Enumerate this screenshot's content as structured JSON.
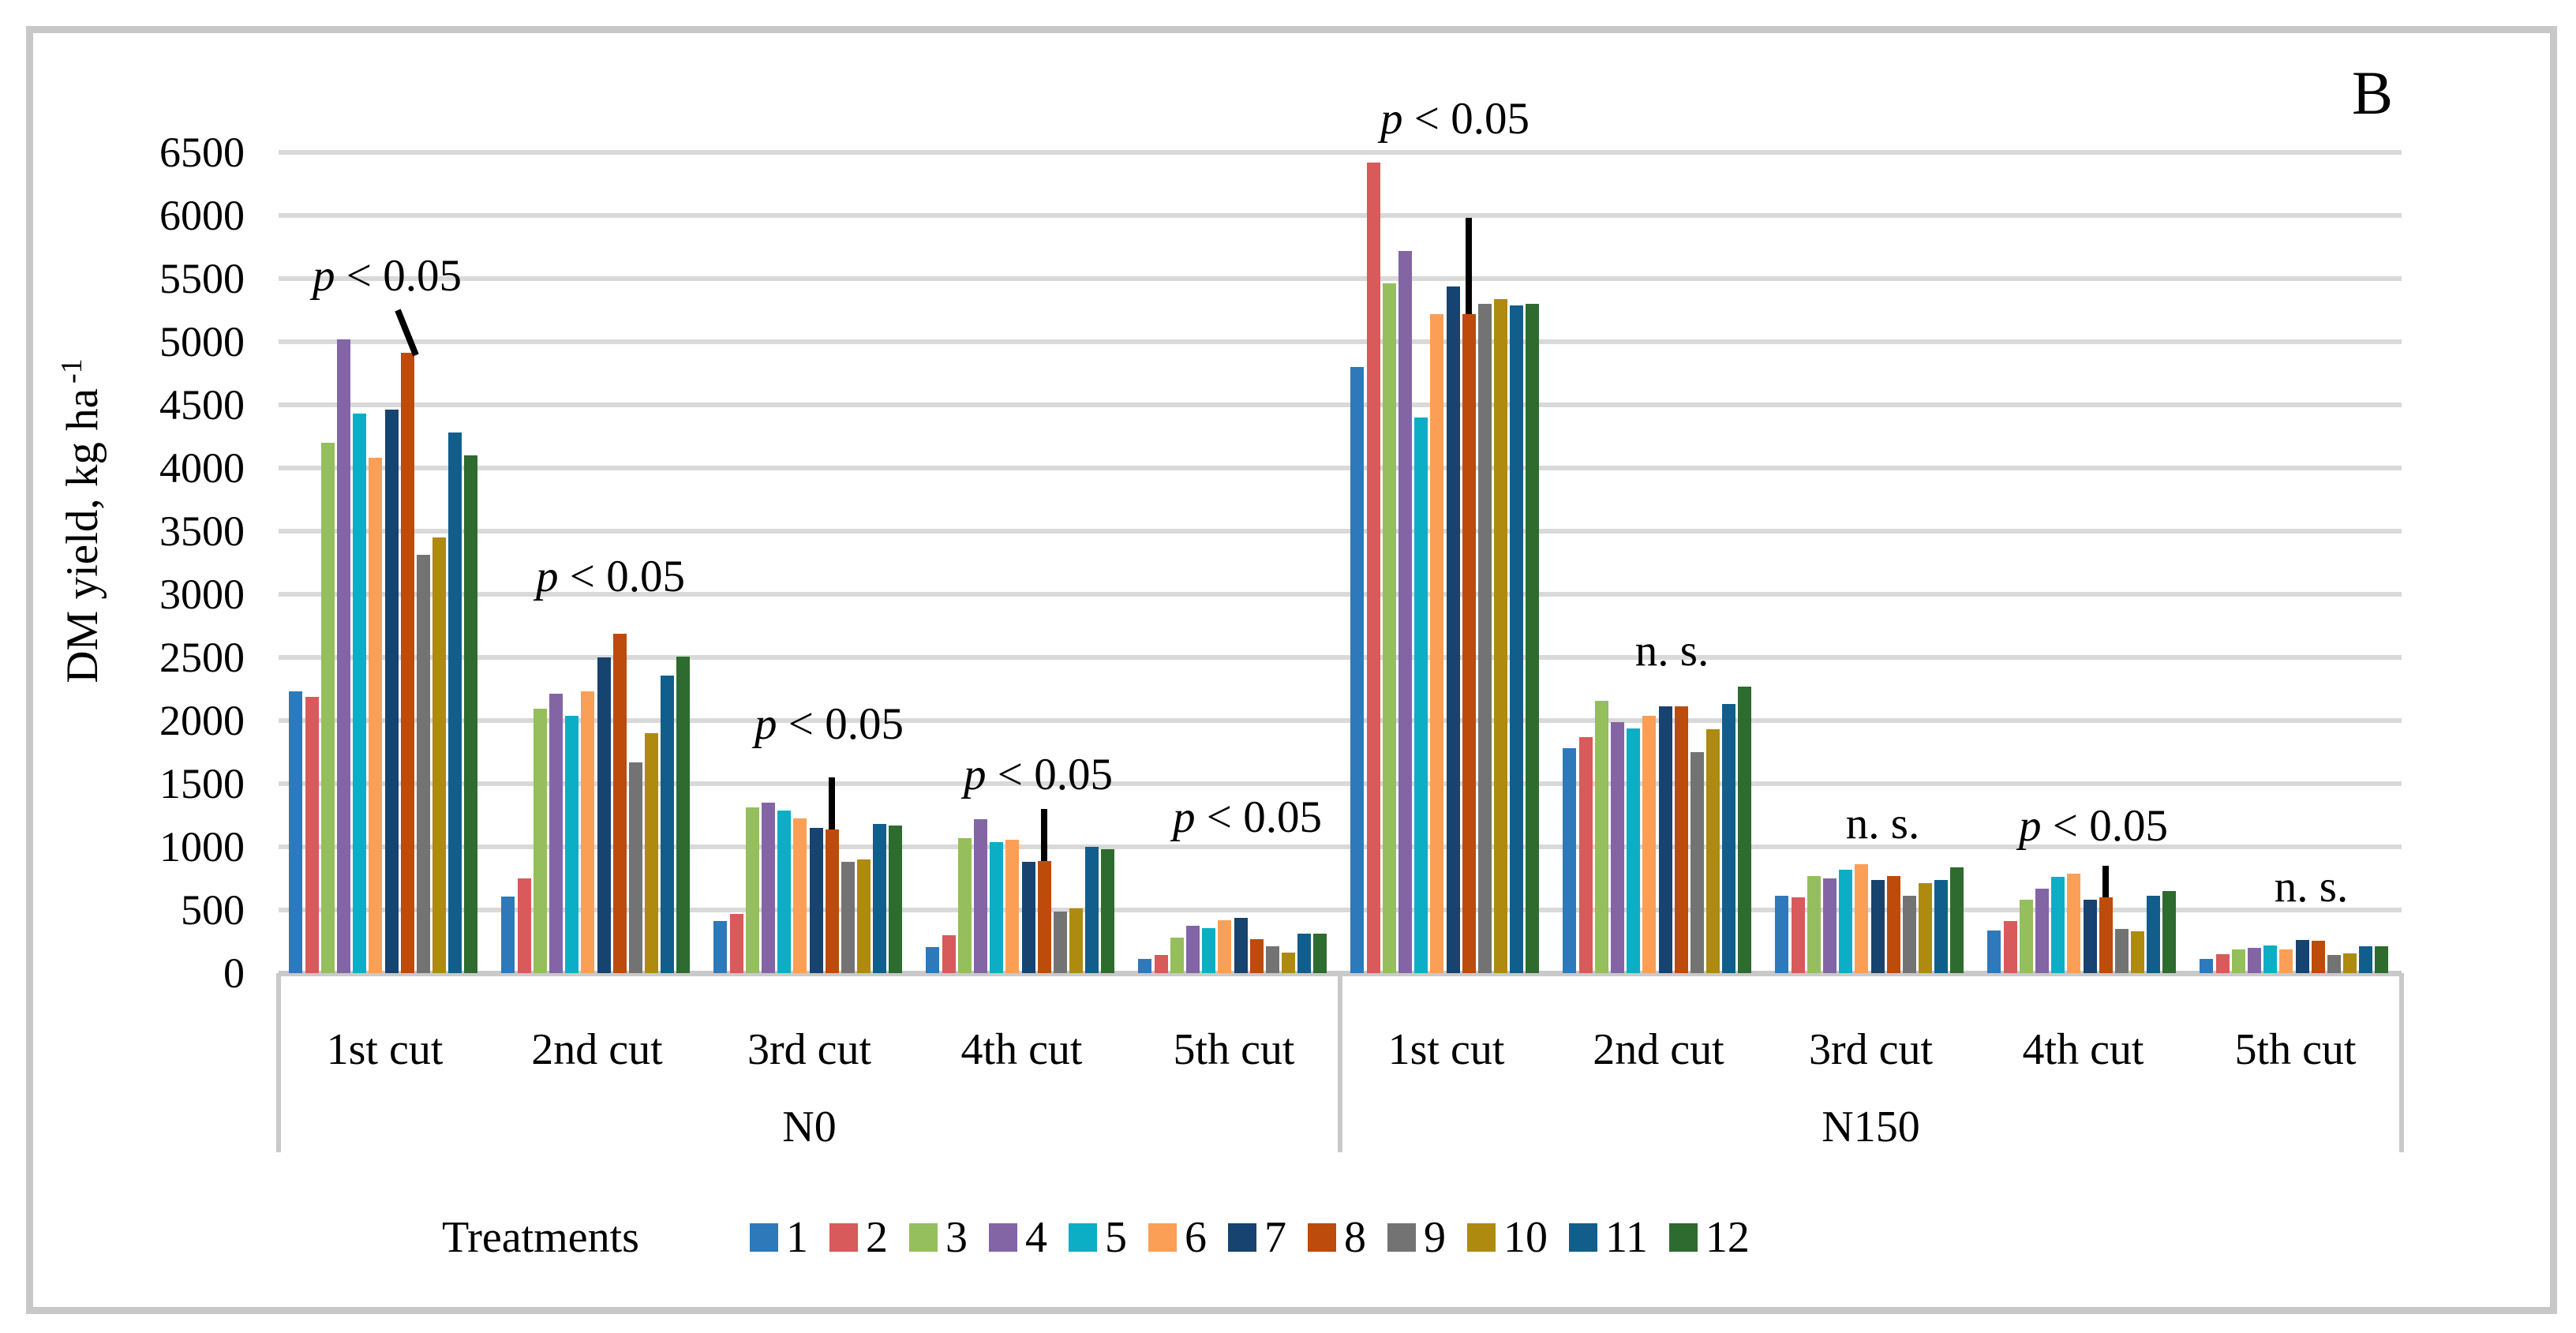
{
  "figure": {
    "panel_letter": "B"
  },
  "chart_data": {
    "type": "bar",
    "title": "",
    "ylabel": "DM yield, kg ha",
    "ylabel_sup": "-1",
    "xlabel": "",
    "ylim": [
      0,
      6500
    ],
    "ytick_step": 500,
    "grid": "horizontal",
    "legend_position": "bottom",
    "legend_title": "Treatments",
    "panels": [
      "N0",
      "N150"
    ],
    "categories": [
      "1st cut",
      "2nd cut",
      "3rd cut",
      "4th cut",
      "5th cut",
      "1st cut",
      "2nd cut",
      "3rd cut",
      "4th cut",
      "5th cut"
    ],
    "category_panel": [
      0,
      0,
      0,
      0,
      0,
      1,
      1,
      1,
      1,
      1
    ],
    "series": [
      {
        "name": "1",
        "color": "#2e79b9",
        "values": [
          2230,
          605,
          410,
          205,
          110,
          4800,
          1780,
          610,
          335,
          110
        ]
      },
      {
        "name": "2",
        "color": "#d85a5a",
        "values": [
          2190,
          750,
          470,
          300,
          145,
          6420,
          1870,
          600,
          410,
          150
        ]
      },
      {
        "name": "3",
        "color": "#95be5c",
        "values": [
          4200,
          2095,
          1310,
          1070,
          280,
          5460,
          2155,
          770,
          580,
          190
        ]
      },
      {
        "name": "4",
        "color": "#8365a5",
        "values": [
          5020,
          2215,
          1350,
          1220,
          375,
          5720,
          1990,
          750,
          670,
          200
        ]
      },
      {
        "name": "5",
        "color": "#0caec5",
        "values": [
          4430,
          2040,
          1290,
          1040,
          355,
          4400,
          1940,
          820,
          760,
          220
        ]
      },
      {
        "name": "6",
        "color": "#fa9f55",
        "values": [
          4080,
          2230,
          1225,
          1055,
          420,
          5220,
          2040,
          860,
          790,
          190
        ]
      },
      {
        "name": "7",
        "color": "#16436f",
        "values": [
          4460,
          2500,
          1150,
          880,
          435,
          5440,
          2110,
          740,
          580,
          260
        ]
      },
      {
        "name": "8",
        "color": "#bc4b0c",
        "values": [
          4910,
          2690,
          1135,
          885,
          270,
          5220,
          2110,
          770,
          600,
          255
        ]
      },
      {
        "name": "9",
        "color": "#737373",
        "values": [
          3310,
          1670,
          880,
          490,
          210,
          5300,
          1750,
          610,
          350,
          145
        ]
      },
      {
        "name": "10",
        "color": "#ae8a0e",
        "values": [
          3450,
          1900,
          900,
          510,
          160,
          5340,
          1930,
          715,
          330,
          155
        ]
      },
      {
        "name": "11",
        "color": "#115e8d",
        "values": [
          4280,
          2355,
          1180,
          1000,
          310,
          5290,
          2130,
          740,
          610,
          210
        ]
      },
      {
        "name": "12",
        "color": "#2d6b2e",
        "values": [
          4100,
          2505,
          1170,
          980,
          310,
          5300,
          2270,
          840,
          650,
          210
        ]
      }
    ],
    "annotations": [
      {
        "group": 0,
        "text": "p < 0.05",
        "y_value": 5520,
        "dx": 3,
        "leader": true
      },
      {
        "group": 1,
        "text": "p < 0.05",
        "y_value": 3140,
        "dx": 17,
        "leader": false
      },
      {
        "group": 2,
        "text": "p < 0.05",
        "y_value": 1970,
        "dx": 25,
        "leader": false
      },
      {
        "group": 3,
        "text": "p < 0.05",
        "y_value": 1570,
        "dx": 21,
        "leader": false
      },
      {
        "group": 4,
        "text": "p < 0.05",
        "y_value": 1230,
        "dx": 17,
        "leader": false
      },
      {
        "group": 5,
        "text": "p < 0.05",
        "y_value": 6760,
        "dx": 11,
        "leader": false
      },
      {
        "group": 6,
        "text": "n. s.",
        "y_value": 2550,
        "dx": 17,
        "leader": false
      },
      {
        "group": 7,
        "text": "n. s.",
        "y_value": 1180,
        "dx": 15,
        "leader": false
      },
      {
        "group": 8,
        "text": "p < 0.05",
        "y_value": 1160,
        "dx": 13,
        "leader": false
      },
      {
        "group": 9,
        "text": "n. s.",
        "y_value": 680,
        "dx": 20,
        "leader": false
      }
    ],
    "error_bars": [
      {
        "group": 2,
        "bar": 7,
        "from": 1135,
        "to": 1550
      },
      {
        "group": 3,
        "bar": 7,
        "from": 885,
        "to": 1300
      },
      {
        "group": 5,
        "bar": 7,
        "from": 5220,
        "to": 5980
      },
      {
        "group": 8,
        "bar": 7,
        "from": 600,
        "to": 850
      }
    ],
    "leader_line": {
      "x1": 504,
      "y1": 393,
      "x2": 527,
      "y2": 450
    }
  },
  "legend": {
    "title": "Treatments",
    "items": [
      "1",
      "2",
      "3",
      "4",
      "5",
      "6",
      "7",
      "8",
      "9",
      "10",
      "11",
      "12"
    ]
  }
}
